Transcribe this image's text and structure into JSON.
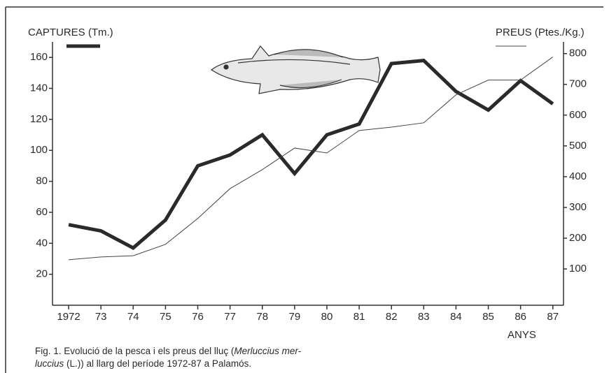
{
  "chart_data": {
    "type": "line",
    "x": [
      1972,
      1973,
      1974,
      1975,
      1976,
      1977,
      1978,
      1979,
      1980,
      1981,
      1982,
      1983,
      1984,
      1985,
      1986,
      1987
    ],
    "xlim": [
      1971.5,
      1987.33
    ],
    "xticks": [
      {
        "value": 1972,
        "label": "1972"
      },
      {
        "value": 1973,
        "label": "73"
      },
      {
        "value": 1974,
        "label": "74"
      },
      {
        "value": 1975,
        "label": "75"
      },
      {
        "value": 1976,
        "label": "76"
      },
      {
        "value": 1977,
        "label": "77"
      },
      {
        "value": 1978,
        "label": "78"
      },
      {
        "value": 1979,
        "label": "79"
      },
      {
        "value": 1980,
        "label": "80"
      },
      {
        "value": 1981,
        "label": "81"
      },
      {
        "value": 1982,
        "label": "82"
      },
      {
        "value": 1983,
        "label": "83"
      },
      {
        "value": 1984,
        "label": "84"
      },
      {
        "value": 1985,
        "label": "85"
      },
      {
        "value": 1986,
        "label": "86"
      },
      {
        "value": 1987,
        "label": "87"
      }
    ],
    "xlabel": "ANYS",
    "ylim": [
      0,
      170
    ],
    "yticks": [
      20,
      40,
      60,
      80,
      100,
      120,
      140,
      160
    ],
    "y2lim": [
      -18,
      838
    ],
    "y2ticks": [
      100,
      200,
      300,
      400,
      500,
      600,
      700,
      800
    ],
    "series": [
      {
        "name": "CAPTURES (Tm.)",
        "color": "#2a2a2a",
        "width": 5,
        "values": [
          52,
          48,
          37,
          55,
          90,
          97,
          110,
          85,
          110,
          117,
          156,
          158,
          138,
          126,
          145,
          130
        ]
      },
      {
        "name": "PREUS (Ptes./Kg.)",
        "color": "#444444",
        "width": 1,
        "axis": "y2",
        "values": [
          130,
          139,
          143,
          180,
          264,
          361,
          423,
          493,
          477,
          550,
          561,
          575,
          666,
          714,
          714,
          789
        ]
      }
    ],
    "caption": [
      [
        "Fig. 1. Evolució de la pesca i els preus del lluç (",
        "Merluccius mer-"
      ],
      [
        "luccius",
        " (L.)) al llarg del període 1972-87 a Palamós."
      ]
    ]
  }
}
